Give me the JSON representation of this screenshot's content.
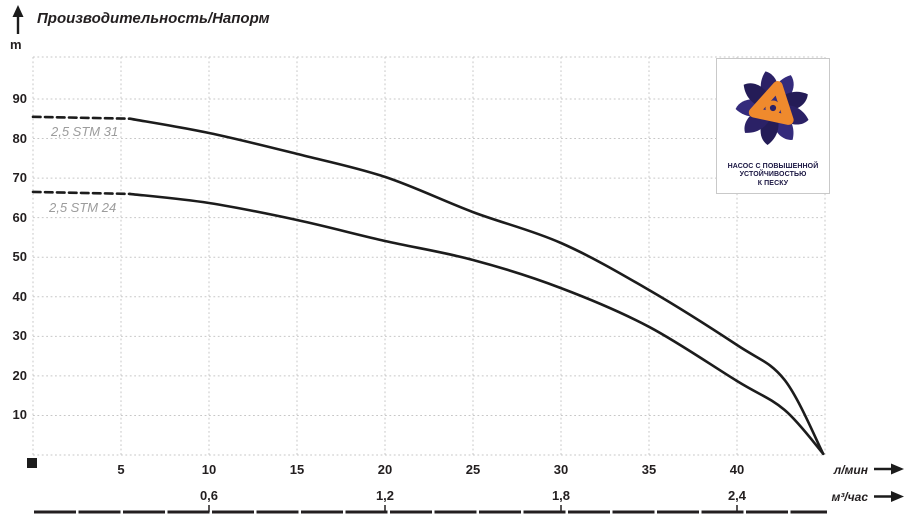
{
  "title": "Производительность/Напорм",
  "y_axis": {
    "unit": "m",
    "ticks": [
      "90",
      "80",
      "70",
      "60",
      "50",
      "40",
      "30",
      "20",
      "10"
    ]
  },
  "x_axis_lmin": {
    "unit": "л/мин",
    "ticks": [
      "5",
      "10",
      "15",
      "20",
      "25",
      "30",
      "35",
      "40"
    ]
  },
  "x_axis_m3h": {
    "unit": "м³/час",
    "ticks": [
      "0,6",
      "1,2",
      "1,8",
      "2,4"
    ]
  },
  "badge": {
    "line1": "НАСОС С ПОВЫШЕННОЙ",
    "line2": "УСТОЙЧИВОСТЬЮ",
    "line3": "К ПЕСКУ"
  },
  "colors": {
    "curve": "#1c1c1c",
    "grid": "#c7c7c7",
    "text": "#231f20",
    "curve_label": "#9c9c9c",
    "logo_navy": "#2b2166",
    "logo_orange": "#ef8a2d"
  },
  "chart_data": {
    "type": "line",
    "title": "Производительность/Напорм",
    "ylabel": "m",
    "xlabel_primary": "л/мин",
    "xlabel_secondary": "м³/час",
    "xlim_lmin": [
      0,
      45
    ],
    "ylim_m": [
      0,
      100
    ],
    "x_ticks_lmin": [
      5,
      10,
      15,
      20,
      25,
      30,
      35,
      40
    ],
    "x_ticks_m3h": [
      0.6,
      1.2,
      1.8,
      2.4
    ],
    "y_ticks_m": [
      10,
      20,
      30,
      40,
      50,
      60,
      70,
      80,
      90
    ],
    "grid": "dotted",
    "legend_position": "on-curve-left",
    "series": [
      {
        "name": "2,5 STM 31",
        "dashed_until_x": 5.5,
        "points": [
          [
            0,
            85.5
          ],
          [
            5.5,
            85.0
          ],
          [
            10,
            81.4
          ],
          [
            15,
            76.1
          ],
          [
            20,
            70.3
          ],
          [
            25,
            61.4
          ],
          [
            30,
            53.6
          ],
          [
            35,
            41.7
          ],
          [
            40,
            27.8
          ],
          [
            42.7,
            19.0
          ],
          [
            44.9,
            0.3
          ]
        ]
      },
      {
        "name": "2,5 STM 24",
        "dashed_until_x": 5.5,
        "points": [
          [
            0,
            66.5
          ],
          [
            5.5,
            66.0
          ],
          [
            10,
            63.7
          ],
          [
            15,
            59.4
          ],
          [
            20,
            54.1
          ],
          [
            25,
            49.3
          ],
          [
            30,
            42.2
          ],
          [
            35,
            32.4
          ],
          [
            40,
            18.7
          ],
          [
            42.7,
            11.4
          ],
          [
            44.9,
            0.3
          ]
        ]
      }
    ]
  }
}
